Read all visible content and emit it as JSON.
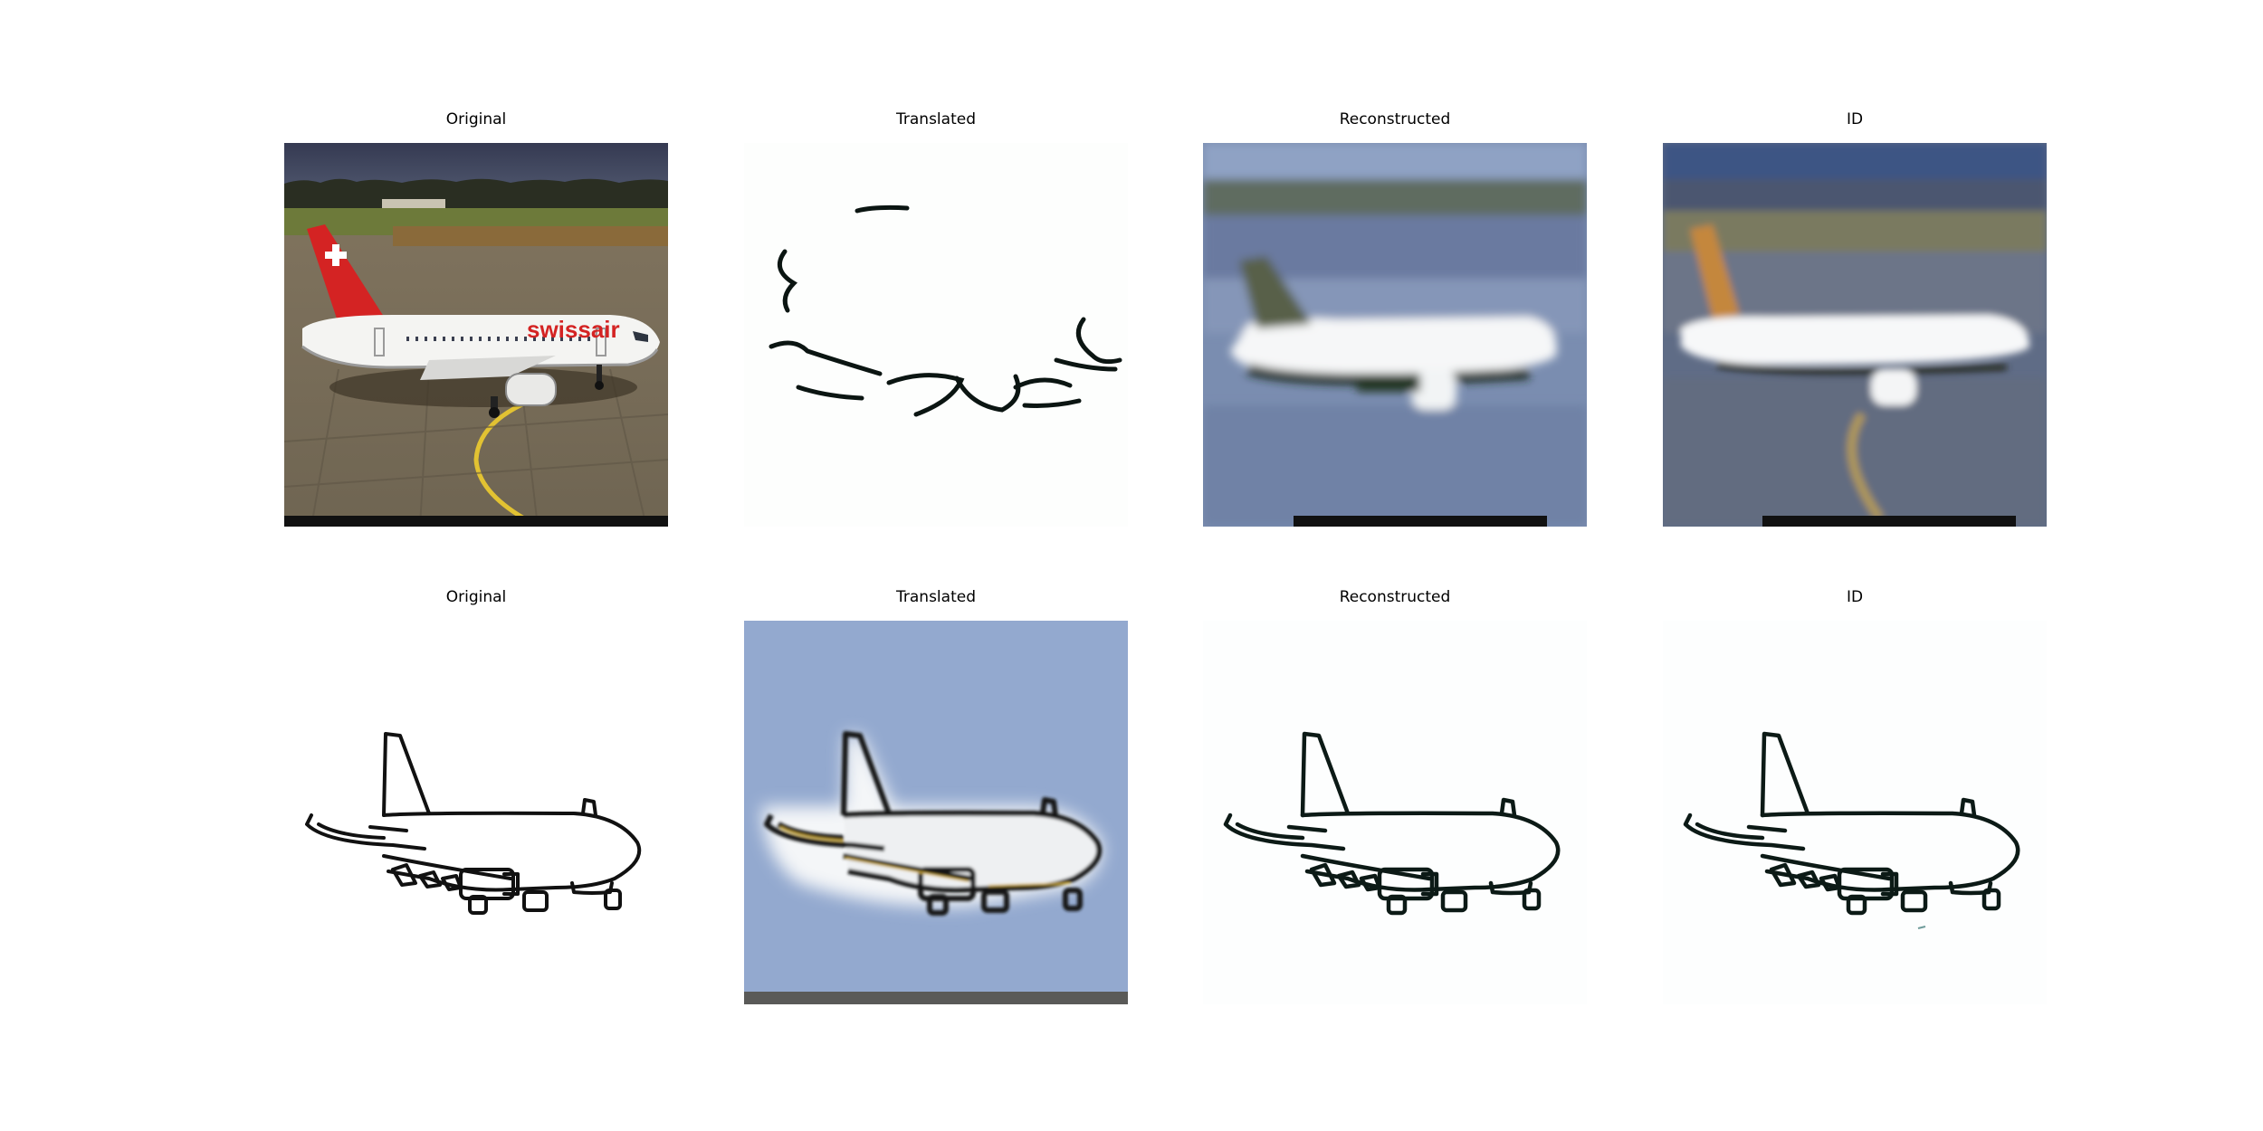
{
  "figure": {
    "rows": [
      {
        "panels": [
          {
            "title": "Original",
            "content": "photo of Swissair passenger jet on tarmac"
          },
          {
            "title": "Translated",
            "content": "sparse edge sketch of airplane"
          },
          {
            "title": "Reconstructed",
            "content": "blurred reconstruction of airplane photo"
          },
          {
            "title": "ID",
            "content": "identity mapping of airplane photo"
          }
        ]
      },
      {
        "panels": [
          {
            "title": "Original",
            "content": "line drawing of airplane"
          },
          {
            "title": "Translated",
            "content": "photo-like rendering of airplane on blue background"
          },
          {
            "title": "Reconstructed",
            "content": "reconstructed line drawing of airplane"
          },
          {
            "title": "ID",
            "content": "identity line drawing of airplane"
          }
        ]
      }
    ],
    "photo_overlay": {
      "livery_text": "swissair"
    },
    "colors": {
      "sky_dark": "#3b3f55",
      "tarmac": "#776c55",
      "tail_red": "#d42323",
      "fuselage": "#f4f4f2",
      "translated_bg": "#93a9cf",
      "line": "#111111"
    }
  }
}
